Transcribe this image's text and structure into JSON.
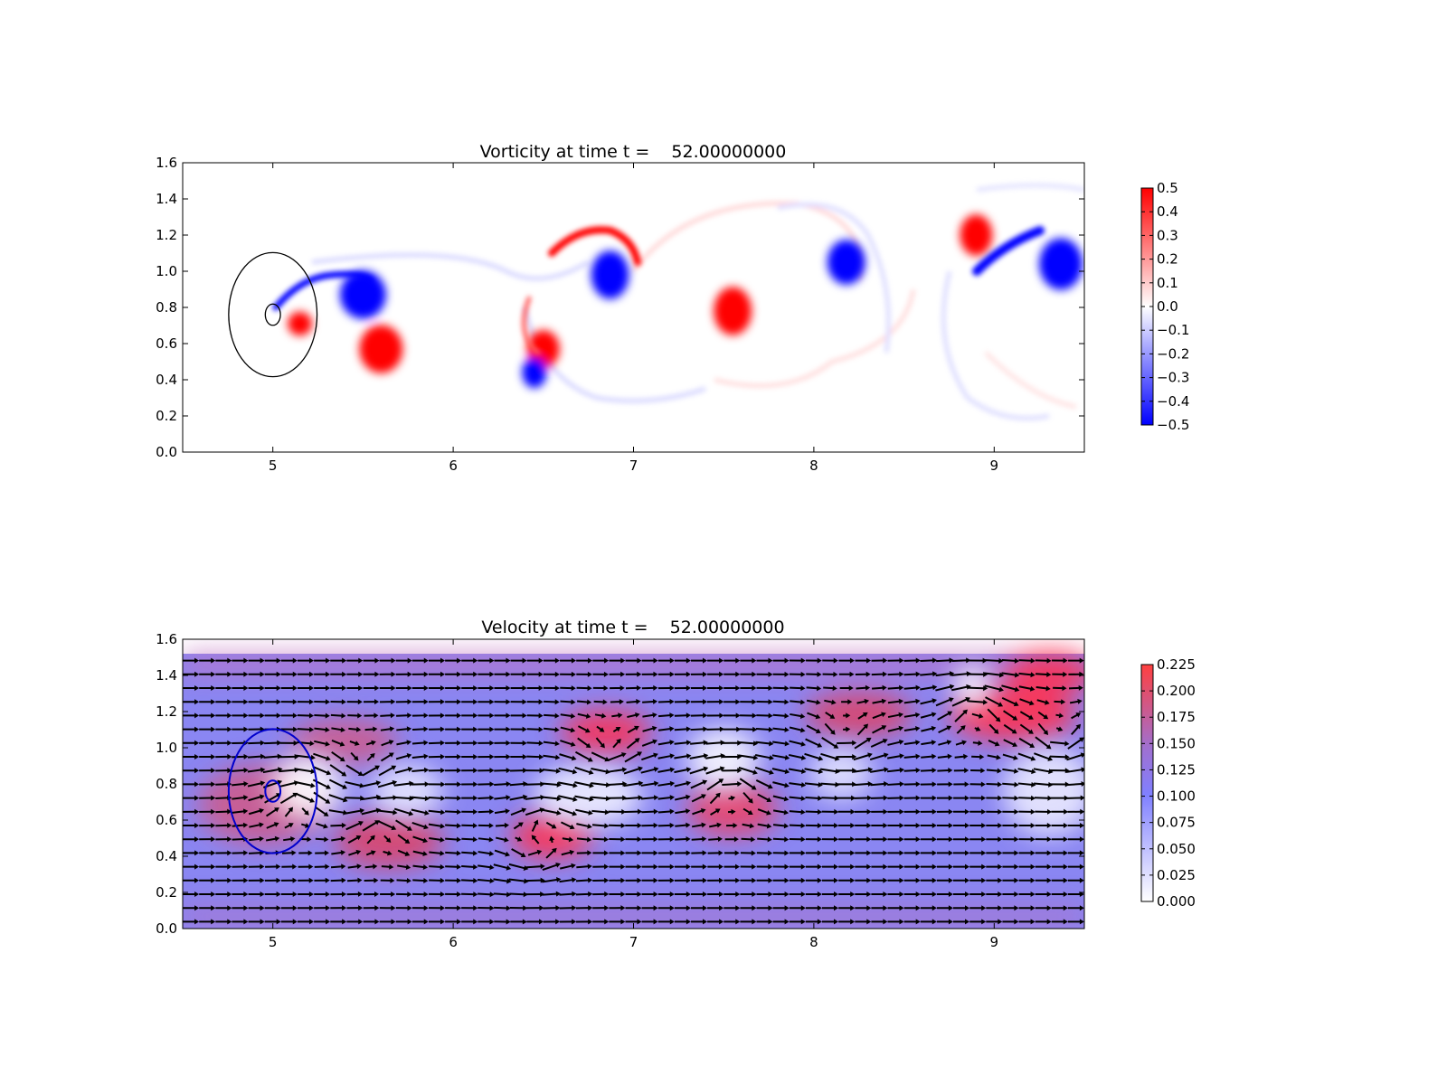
{
  "figure": {
    "colors": {
      "vort_pos": "#ff0000",
      "vort_neg": "#0000ff",
      "vel_low": "#ffffff",
      "vel_mid": "#8080ff",
      "vel_high": "#ff4040",
      "arrow": "#000000",
      "circle_top": "#000000",
      "circle_bottom": "#0000cc"
    }
  },
  "chart_data": [
    {
      "type": "heatmap",
      "title": "Vorticity at time t =    52.00000000",
      "xlim": [
        4.5,
        9.5
      ],
      "ylim": [
        0.0,
        1.6
      ],
      "xticks": [
        "5",
        "6",
        "7",
        "8",
        "9"
      ],
      "yticks": [
        "0.0",
        "0.2",
        "0.4",
        "0.6",
        "0.8",
        "1.0",
        "1.2",
        "1.4",
        "1.6"
      ],
      "colorbar": {
        "range": [
          -0.5,
          0.5
        ],
        "ticks": [
          "0.5",
          "0.4",
          "0.3",
          "0.2",
          "0.1",
          "0.0",
          "−0.1",
          "−0.2",
          "−0.3",
          "−0.4",
          "−0.5"
        ],
        "colormap": "bwr"
      },
      "vortices": [
        {
          "x": 5.5,
          "y": 0.87,
          "rx": 0.17,
          "ry": 0.14,
          "value": -0.5
        },
        {
          "x": 5.6,
          "y": 0.57,
          "rx": 0.16,
          "ry": 0.14,
          "value": 0.5
        },
        {
          "x": 5.15,
          "y": 0.71,
          "rx": 0.09,
          "ry": 0.07,
          "value": 0.5
        },
        {
          "x": 6.5,
          "y": 0.57,
          "rx": 0.12,
          "ry": 0.11,
          "value": 0.5
        },
        {
          "x": 6.45,
          "y": 0.44,
          "rx": 0.09,
          "ry": 0.09,
          "value": -0.5
        },
        {
          "x": 6.87,
          "y": 0.98,
          "rx": 0.14,
          "ry": 0.14,
          "value": -0.5
        },
        {
          "x": 7.55,
          "y": 0.78,
          "rx": 0.14,
          "ry": 0.14,
          "value": 0.5
        },
        {
          "x": 8.18,
          "y": 1.05,
          "rx": 0.14,
          "ry": 0.13,
          "value": -0.5
        },
        {
          "x": 8.9,
          "y": 1.2,
          "rx": 0.12,
          "ry": 0.12,
          "value": 0.5
        },
        {
          "x": 9.37,
          "y": 1.04,
          "rx": 0.16,
          "ry": 0.15,
          "value": -0.5
        }
      ],
      "circles": [
        {
          "x": 5.0,
          "y": 0.76,
          "r": 0.35
        },
        {
          "x": 5.0,
          "y": 0.76,
          "r": 0.06
        }
      ]
    },
    {
      "type": "heatmap",
      "title": "Velocity at time t =    52.00000000",
      "xlim": [
        4.5,
        9.5
      ],
      "ylim": [
        0.0,
        1.6
      ],
      "xticks": [
        "5",
        "6",
        "7",
        "8",
        "9"
      ],
      "yticks": [
        "0.0",
        "0.2",
        "0.4",
        "0.6",
        "0.8",
        "1.0",
        "1.2",
        "1.4",
        "1.6"
      ],
      "colorbar": {
        "range": [
          0.0,
          0.225
        ],
        "ticks": [
          "0.225",
          "0.200",
          "0.175",
          "0.150",
          "0.125",
          "0.100",
          "0.075",
          "0.050",
          "0.025",
          "0.000"
        ],
        "colormap": "white-blue-red"
      },
      "field_top": 1.52,
      "background_speed": 0.1,
      "quiver": true,
      "circles": [
        {
          "x": 5.0,
          "y": 0.76,
          "r": 0.35
        },
        {
          "x": 5.0,
          "y": 0.76,
          "r": 0.06
        }
      ]
    }
  ]
}
